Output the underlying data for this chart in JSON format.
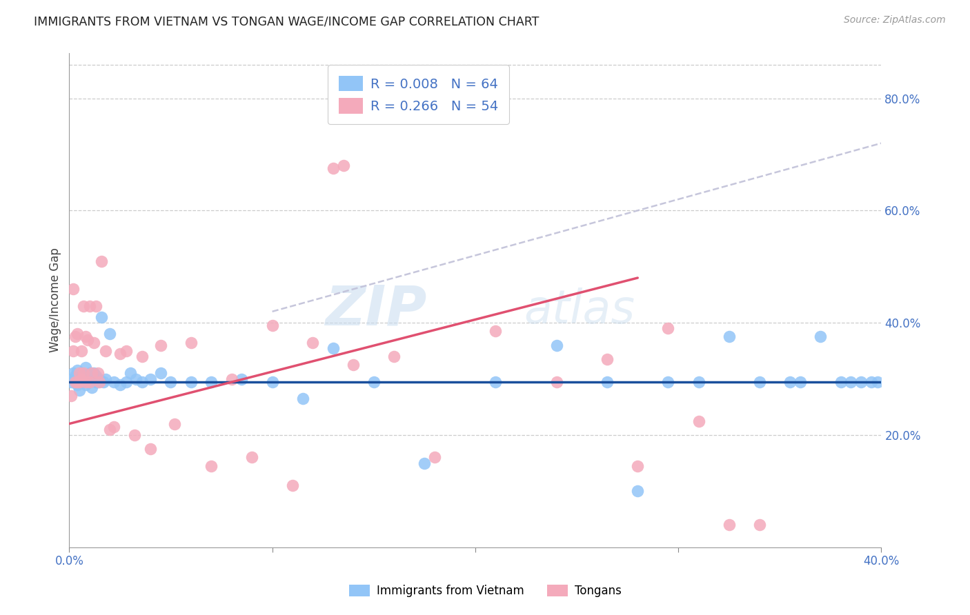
{
  "title": "IMMIGRANTS FROM VIETNAM VS TONGAN WAGE/INCOME GAP CORRELATION CHART",
  "source": "Source: ZipAtlas.com",
  "ylabel": "Wage/Income Gap",
  "xlim": [
    0.0,
    0.4
  ],
  "ylim": [
    0.0,
    0.88
  ],
  "blue_color": "#92C5F7",
  "pink_color": "#F4AABB",
  "blue_line_color": "#1A4F9C",
  "pink_line_color": "#E05070",
  "dash_color": "#C0C0D8",
  "legend_label1": "Immigrants from Vietnam",
  "legend_label2": "Tongans",
  "watermark_zip": "ZIP",
  "watermark_atlas": "atlas",
  "blue_scatter_x": [
    0.001,
    0.002,
    0.002,
    0.003,
    0.003,
    0.004,
    0.004,
    0.005,
    0.005,
    0.006,
    0.006,
    0.007,
    0.007,
    0.007,
    0.008,
    0.008,
    0.009,
    0.009,
    0.01,
    0.01,
    0.011,
    0.012,
    0.012,
    0.013,
    0.013,
    0.014,
    0.015,
    0.016,
    0.017,
    0.018,
    0.02,
    0.022,
    0.025,
    0.028,
    0.03,
    0.033,
    0.036,
    0.04,
    0.045,
    0.05,
    0.06,
    0.07,
    0.085,
    0.1,
    0.115,
    0.13,
    0.15,
    0.175,
    0.21,
    0.24,
    0.265,
    0.28,
    0.295,
    0.31,
    0.325,
    0.34,
    0.355,
    0.36,
    0.37,
    0.38,
    0.385,
    0.39,
    0.395,
    0.398
  ],
  "blue_scatter_y": [
    0.295,
    0.3,
    0.31,
    0.295,
    0.305,
    0.29,
    0.315,
    0.28,
    0.3,
    0.295,
    0.31,
    0.3,
    0.295,
    0.305,
    0.29,
    0.32,
    0.295,
    0.3,
    0.31,
    0.295,
    0.285,
    0.3,
    0.31,
    0.295,
    0.305,
    0.295,
    0.3,
    0.41,
    0.295,
    0.3,
    0.38,
    0.295,
    0.29,
    0.295,
    0.31,
    0.3,
    0.295,
    0.3,
    0.31,
    0.295,
    0.295,
    0.295,
    0.3,
    0.295,
    0.265,
    0.355,
    0.295,
    0.15,
    0.295,
    0.36,
    0.295,
    0.1,
    0.295,
    0.295,
    0.375,
    0.295,
    0.295,
    0.295,
    0.375,
    0.295,
    0.295,
    0.295,
    0.295,
    0.295
  ],
  "pink_scatter_x": [
    0.001,
    0.002,
    0.002,
    0.003,
    0.003,
    0.004,
    0.004,
    0.005,
    0.005,
    0.006,
    0.006,
    0.007,
    0.007,
    0.008,
    0.008,
    0.009,
    0.01,
    0.01,
    0.011,
    0.012,
    0.013,
    0.014,
    0.015,
    0.016,
    0.018,
    0.02,
    0.022,
    0.025,
    0.028,
    0.032,
    0.036,
    0.04,
    0.045,
    0.052,
    0.06,
    0.07,
    0.08,
    0.09,
    0.1,
    0.11,
    0.12,
    0.13,
    0.135,
    0.14,
    0.16,
    0.18,
    0.21,
    0.24,
    0.265,
    0.28,
    0.295,
    0.31,
    0.325,
    0.34
  ],
  "pink_scatter_y": [
    0.27,
    0.46,
    0.35,
    0.295,
    0.375,
    0.295,
    0.38,
    0.295,
    0.31,
    0.35,
    0.3,
    0.31,
    0.43,
    0.295,
    0.375,
    0.37,
    0.295,
    0.43,
    0.31,
    0.365,
    0.43,
    0.31,
    0.295,
    0.51,
    0.35,
    0.21,
    0.215,
    0.345,
    0.35,
    0.2,
    0.34,
    0.175,
    0.36,
    0.22,
    0.365,
    0.145,
    0.3,
    0.16,
    0.395,
    0.11,
    0.365,
    0.675,
    0.68,
    0.325,
    0.34,
    0.16,
    0.385,
    0.295,
    0.335,
    0.145,
    0.39,
    0.225,
    0.04,
    0.04
  ],
  "blue_trend_slope": 0.0,
  "blue_trend_intercept": 0.295,
  "pink_trend_x0": 0.0,
  "pink_trend_y0": 0.22,
  "pink_trend_x1": 0.28,
  "pink_trend_y1": 0.48,
  "dash_trend_x0": 0.1,
  "dash_trend_y0": 0.42,
  "dash_trend_x1": 0.4,
  "dash_trend_y1": 0.72
}
